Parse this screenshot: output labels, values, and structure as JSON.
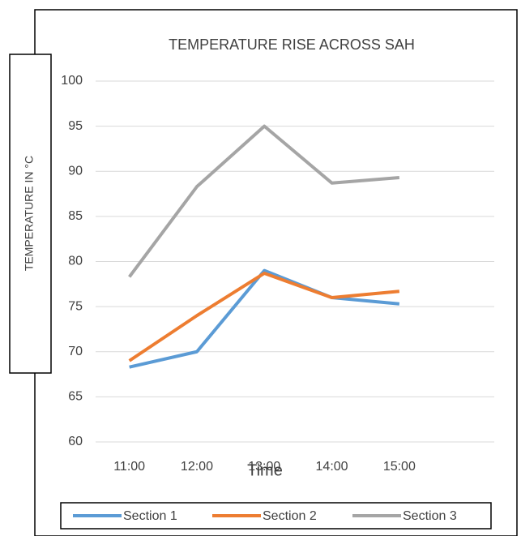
{
  "chart_data": {
    "type": "line",
    "title": "TEMPERATURE RISE ACROSS SAH",
    "x_label": "Time",
    "y_label": "TEMPERATURE IN °C",
    "categories": [
      "11:00",
      "12:00",
      "13:00",
      "14:00",
      "15:00"
    ],
    "series": [
      {
        "name": "Section 1",
        "color": "#5b9bd5",
        "values": [
          68.3,
          70,
          79,
          76,
          75.3
        ]
      },
      {
        "name": "Section 2",
        "color": "#ed7d31",
        "values": [
          69,
          74,
          78.7,
          76,
          76.7
        ]
      },
      {
        "name": "Section 3",
        "color": "#a5a5a5",
        "values": [
          78.3,
          88.3,
          95,
          88.7,
          89.3
        ]
      }
    ],
    "ylim": [
      60,
      100
    ],
    "yticks": [
      60,
      65,
      70,
      75,
      80,
      85,
      90,
      95,
      100
    ],
    "grid": true,
    "legend": "bottom"
  }
}
